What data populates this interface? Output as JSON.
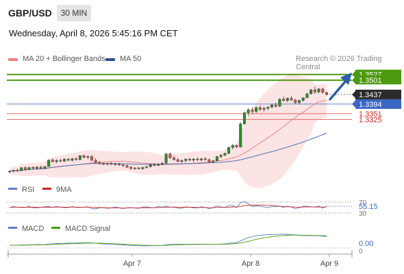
{
  "header": {
    "pair": "GBP/USD",
    "timeframe": "30 MIN",
    "datetime": "Wednesday, April 8, 2026 5:45:16 PM CET"
  },
  "legend": {
    "ma20": "MA 20 + Bollinger Bands",
    "ma50": "MA 50",
    "research": "Research © 2026 Trading Central"
  },
  "colors": {
    "bull": "#2e8b2e",
    "bear": "#d9534f",
    "ma20": "#f08080",
    "ma50": "#4a6fb0",
    "band": "#fde4e4",
    "resistance": "#4c9a0e",
    "support": "#5b7fc7",
    "redline": "#e06666",
    "arrow": "#2c5fa8",
    "rsi": "#5b7fc7",
    "rsi_ma": "#cc2222",
    "macd": "#5b7fc7",
    "macd_signal": "#4c9a0e"
  },
  "chart_data": [
    {
      "type": "candlestick",
      "title": "GBP/USD",
      "ylim": [
        1.3055,
        1.356
      ],
      "x_labels": [
        "Apr 7",
        "Apr 8",
        "Apr 9"
      ],
      "levels": [
        {
          "label": "1.3527",
          "value": 1.3527,
          "style": "resistance",
          "tag": "green"
        },
        {
          "label": "1.3501",
          "value": 1.3501,
          "style": "resistance",
          "tag": "green"
        },
        {
          "label": "1.3437",
          "value": 1.3437,
          "style": "current",
          "tag": "dark"
        },
        {
          "label": "1.3394",
          "value": 1.3394,
          "style": "support",
          "tag": "blue"
        },
        {
          "label": "1.3351",
          "value": 1.3351,
          "style": "red",
          "tag": "text"
        },
        {
          "label": "1.3325",
          "value": 1.3325,
          "style": "red",
          "tag": "text"
        }
      ],
      "candles": [
        [
          1.309,
          1.3095,
          1.3083,
          1.3092
        ],
        [
          1.3092,
          1.31,
          1.3088,
          1.3096
        ],
        [
          1.3096,
          1.3104,
          1.309,
          1.3094
        ],
        [
          1.3094,
          1.311,
          1.3093,
          1.3108
        ],
        [
          1.3108,
          1.3114,
          1.3096,
          1.31
        ],
        [
          1.31,
          1.3112,
          1.3097,
          1.3109
        ],
        [
          1.3109,
          1.3115,
          1.3102,
          1.3105
        ],
        [
          1.3105,
          1.3114,
          1.31,
          1.3111
        ],
        [
          1.3111,
          1.3116,
          1.3103,
          1.3106
        ],
        [
          1.3106,
          1.3116,
          1.3102,
          1.3113
        ],
        [
          1.3113,
          1.3145,
          1.3112,
          1.3142
        ],
        [
          1.3142,
          1.315,
          1.3132,
          1.3135
        ],
        [
          1.3135,
          1.3146,
          1.3129,
          1.314
        ],
        [
          1.314,
          1.3148,
          1.3133,
          1.3137
        ],
        [
          1.3137,
          1.315,
          1.3134,
          1.3146
        ],
        [
          1.3146,
          1.3152,
          1.3138,
          1.3141
        ],
        [
          1.3141,
          1.3152,
          1.3136,
          1.3148
        ],
        [
          1.3148,
          1.3156,
          1.314,
          1.3144
        ],
        [
          1.3144,
          1.3165,
          1.3142,
          1.3162
        ],
        [
          1.3162,
          1.3168,
          1.315,
          1.3154
        ],
        [
          1.3154,
          1.3163,
          1.3145,
          1.3158
        ],
        [
          1.3158,
          1.3164,
          1.3138,
          1.3141
        ],
        [
          1.3141,
          1.315,
          1.3128,
          1.3131
        ],
        [
          1.3131,
          1.3138,
          1.3122,
          1.3126
        ],
        [
          1.3126,
          1.3132,
          1.3119,
          1.3124
        ],
        [
          1.3124,
          1.313,
          1.3118,
          1.3127
        ],
        [
          1.3127,
          1.3133,
          1.312,
          1.3123
        ],
        [
          1.3123,
          1.3129,
          1.3117,
          1.3125
        ],
        [
          1.3125,
          1.313,
          1.3116,
          1.312
        ],
        [
          1.312,
          1.3127,
          1.3112,
          1.3117
        ],
        [
          1.3117,
          1.3124,
          1.3107,
          1.311
        ],
        [
          1.311,
          1.3116,
          1.31,
          1.3104
        ],
        [
          1.3104,
          1.311,
          1.3098,
          1.3107
        ],
        [
          1.3107,
          1.3112,
          1.31,
          1.3103
        ],
        [
          1.3103,
          1.3111,
          1.3099,
          1.3109
        ],
        [
          1.3109,
          1.3116,
          1.3104,
          1.3112
        ],
        [
          1.3112,
          1.3126,
          1.311,
          1.3122
        ],
        [
          1.3122,
          1.313,
          1.3114,
          1.3118
        ],
        [
          1.3118,
          1.3128,
          1.3115,
          1.3125
        ],
        [
          1.3125,
          1.3134,
          1.3119,
          1.3128
        ],
        [
          1.3128,
          1.3174,
          1.3126,
          1.317
        ],
        [
          1.317,
          1.3176,
          1.3148,
          1.3152
        ],
        [
          1.3152,
          1.316,
          1.314,
          1.3144
        ],
        [
          1.3144,
          1.3152,
          1.3132,
          1.3136
        ],
        [
          1.3136,
          1.3145,
          1.3128,
          1.314
        ],
        [
          1.314,
          1.315,
          1.3132,
          1.3146
        ],
        [
          1.3146,
          1.3153,
          1.3137,
          1.3142
        ],
        [
          1.3142,
          1.315,
          1.3133,
          1.3147
        ],
        [
          1.3147,
          1.3154,
          1.3139,
          1.3143
        ],
        [
          1.3143,
          1.3151,
          1.3136,
          1.3148
        ],
        [
          1.3148,
          1.3155,
          1.314,
          1.3144
        ],
        [
          1.3144,
          1.315,
          1.313,
          1.3134
        ],
        [
          1.3134,
          1.3142,
          1.3128,
          1.3139
        ],
        [
          1.3139,
          1.316,
          1.3137,
          1.3158
        ],
        [
          1.3158,
          1.317,
          1.315,
          1.3164
        ],
        [
          1.3164,
          1.3176,
          1.316,
          1.3172
        ],
        [
          1.3172,
          1.3202,
          1.317,
          1.3199
        ],
        [
          1.3199,
          1.3215,
          1.319,
          1.3208
        ],
        [
          1.3208,
          1.3212,
          1.3196,
          1.3201
        ],
        [
          1.3201,
          1.3312,
          1.3199,
          1.3305
        ],
        [
          1.3305,
          1.336,
          1.33,
          1.3355
        ],
        [
          1.3355,
          1.3375,
          1.334,
          1.3368
        ],
        [
          1.3368,
          1.338,
          1.335,
          1.336
        ],
        [
          1.336,
          1.3384,
          1.3355,
          1.3378
        ],
        [
          1.3378,
          1.3388,
          1.3362,
          1.337
        ],
        [
          1.337,
          1.3382,
          1.336,
          1.3375
        ],
        [
          1.3375,
          1.3385,
          1.3366,
          1.338
        ],
        [
          1.338,
          1.3394,
          1.3375,
          1.339
        ],
        [
          1.339,
          1.34,
          1.3378,
          1.3384
        ],
        [
          1.3384,
          1.342,
          1.3382,
          1.3416
        ],
        [
          1.3416,
          1.3428,
          1.3405,
          1.341
        ],
        [
          1.341,
          1.3424,
          1.3402,
          1.342
        ],
        [
          1.342,
          1.343,
          1.3408,
          1.3412
        ],
        [
          1.3412,
          1.3418,
          1.3396,
          1.34
        ],
        [
          1.34,
          1.3415,
          1.3396,
          1.341
        ],
        [
          1.341,
          1.3425,
          1.3405,
          1.3422
        ],
        [
          1.3422,
          1.3445,
          1.342,
          1.344
        ],
        [
          1.344,
          1.3462,
          1.3436,
          1.3458
        ],
        [
          1.3458,
          1.3472,
          1.344,
          1.3448
        ],
        [
          1.3448,
          1.3465,
          1.3443,
          1.3462
        ],
        [
          1.3462,
          1.3466,
          1.3442,
          1.3446
        ],
        [
          1.3446,
          1.345,
          1.3432,
          1.3437
        ]
      ]
    },
    {
      "type": "line",
      "title": "RSI",
      "series": [
        {
          "name": "RSI"
        },
        {
          "name": "9MA"
        }
      ],
      "ylim": [
        25,
        80
      ],
      "levels": [
        {
          "label": "70",
          "value": 70
        },
        {
          "label": "30",
          "value": 30
        }
      ],
      "current_label": "55.15",
      "current_value": 55.15
    },
    {
      "type": "line",
      "title": "MACD",
      "series": [
        {
          "name": "MACD"
        },
        {
          "name": "MACD Signal"
        }
      ],
      "zero_label": "0",
      "current_label": "0.00",
      "current_value": 0.0
    }
  ]
}
